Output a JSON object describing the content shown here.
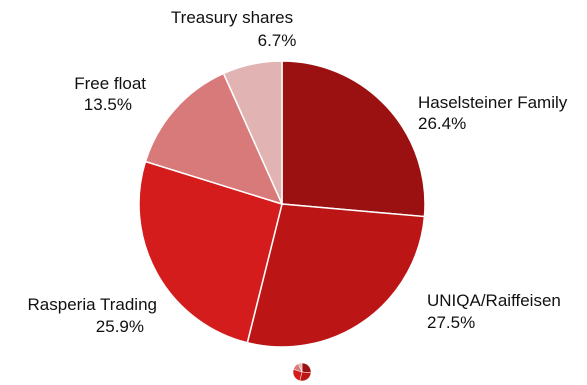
{
  "chart_data": {
    "type": "pie",
    "title": "",
    "slices": [
      {
        "label": "Haselsteiner Family",
        "value": 26.4,
        "value_label": "26.4%",
        "color": "#9b1111"
      },
      {
        "label": "UNIQA/Raiffeisen",
        "value": 27.5,
        "value_label": "27.5%",
        "color": "#bb1515"
      },
      {
        "label": "Rasperia Trading",
        "value": 25.9,
        "value_label": "25.9%",
        "color": "#d41c1c"
      },
      {
        "label": "Free float",
        "value": 13.5,
        "value_label": "13.5%",
        "color": "#d97a7a"
      },
      {
        "label": "Treasury shares",
        "value": 6.7,
        "value_label": "6.7%",
        "color": "#e2b3b3"
      }
    ],
    "start_angle_deg": 0,
    "direction": "clockwise",
    "legend": "none",
    "labels": "outside"
  }
}
